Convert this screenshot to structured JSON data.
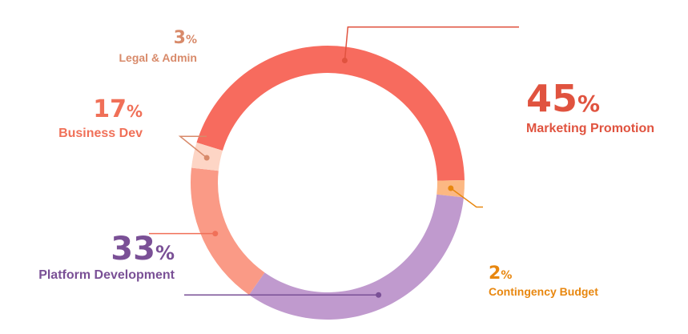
{
  "chart_data": {
    "type": "pie",
    "style": "donut",
    "slices": [
      {
        "label": "Marketing Promotion",
        "value": 45,
        "percent_text": "45",
        "color": "#f76b5e",
        "label_color": "#e0533f"
      },
      {
        "label": "Contingency Budget",
        "value": 2,
        "percent_text": "2",
        "color": "#fcb883",
        "label_color": "#e8870f"
      },
      {
        "label": "Platform Development",
        "value": 33,
        "percent_text": "33",
        "color": "#c09ace",
        "label_color": "#7a5096"
      },
      {
        "label": "Business Dev",
        "value": 17,
        "percent_text": "17",
        "color": "#fa9a86",
        "label_color": "#f07058"
      },
      {
        "label": "Legal & Admin",
        "value": 3,
        "percent_text": "3",
        "color": "#fdd5c5",
        "label_color": "#d88a6a"
      }
    ],
    "percent_symbol": "%",
    "title": "",
    "legend": "none"
  }
}
